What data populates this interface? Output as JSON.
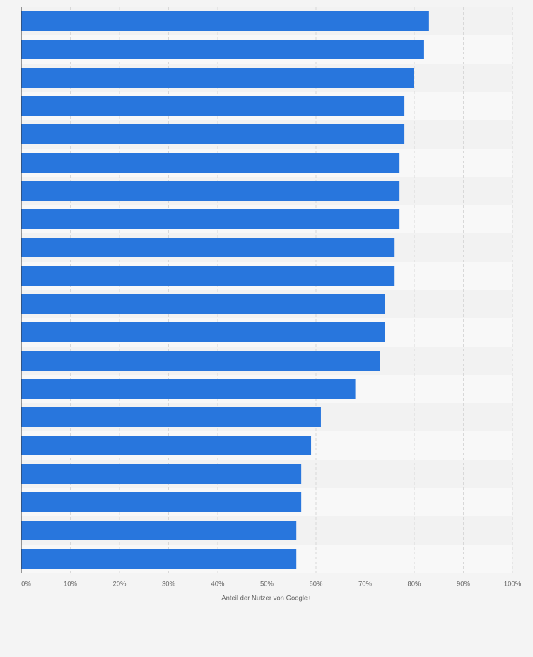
{
  "chart_data": {
    "type": "barh",
    "x_label": "Anteil der Nutzer von Google+",
    "categories": [
      null,
      null,
      null,
      null,
      null,
      null,
      null,
      null,
      null,
      null,
      null,
      null,
      null,
      null,
      null,
      null,
      null,
      null,
      null,
      null
    ],
    "values": [
      83,
      82,
      80,
      78,
      78,
      77,
      77,
      77,
      76,
      76,
      74,
      74,
      73,
      68,
      61,
      59,
      57,
      57,
      56,
      56
    ],
    "color": "#2876dd",
    "xlim": [
      0,
      100
    ],
    "xticks": [
      {
        "value": 0,
        "label": "0%"
      },
      {
        "value": 10,
        "label": "10%"
      },
      {
        "value": 20,
        "label": "20%"
      },
      {
        "value": 30,
        "label": "30%"
      },
      {
        "value": 40,
        "label": "40%"
      },
      {
        "value": 50,
        "label": "50%"
      },
      {
        "value": 60,
        "label": "60%"
      },
      {
        "value": 70,
        "label": "70%"
      },
      {
        "value": 80,
        "label": "80%"
      },
      {
        "value": 90,
        "label": "90%"
      },
      {
        "value": 100,
        "label": "100%"
      }
    ],
    "grid": true
  }
}
